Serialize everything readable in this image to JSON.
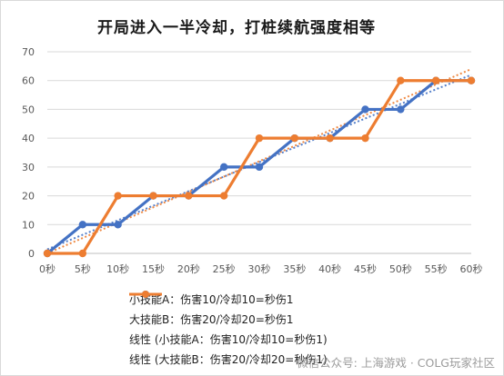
{
  "chart_data": {
    "type": "line",
    "title": "开局进入一半冷却，打桩续航强度相等",
    "xlabel": "",
    "ylabel": "",
    "categories": [
      "0秒",
      "5秒",
      "10秒",
      "15秒",
      "20秒",
      "25秒",
      "30秒",
      "35秒",
      "40秒",
      "45秒",
      "50秒",
      "55秒",
      "60秒"
    ],
    "x": [
      0,
      5,
      10,
      15,
      20,
      25,
      30,
      35,
      40,
      45,
      50,
      55,
      60
    ],
    "ylim": [
      0,
      70
    ],
    "yticks": [
      0,
      10,
      20,
      30,
      40,
      50,
      60,
      70
    ],
    "grid": true,
    "legend_position": "bottom",
    "series": [
      {
        "name": "小技能A：伤害10/冷却10=秒伤1",
        "color": "#4472C4",
        "style": "solid-marker",
        "x": [
          0,
          5,
          10,
          15,
          20,
          25,
          30,
          35,
          40,
          45,
          50,
          55,
          60
        ],
        "values": [
          0,
          10,
          10,
          20,
          20,
          30,
          30,
          40,
          40,
          50,
          50,
          60,
          60
        ]
      },
      {
        "name": "大技能B：伤害20/冷却20=秒伤1",
        "color": "#ED7D31",
        "style": "solid-marker",
        "x": [
          0,
          5,
          10,
          15,
          20,
          25,
          30,
          35,
          40,
          45,
          50,
          55,
          60
        ],
        "values": [
          0,
          0,
          20,
          20,
          20,
          20,
          40,
          40,
          40,
          40,
          60,
          60,
          60
        ]
      },
      {
        "name": "线性 (小技能A：伤害10/冷却10=秒伤1)",
        "color": "#4472C4",
        "style": "dotted",
        "x": [
          0,
          60
        ],
        "values": [
          1.4,
          62
        ]
      },
      {
        "name": "线性 (大技能B：伤害20/冷却20=秒伤1)",
        "color": "#ED7D31",
        "style": "dotted",
        "x": [
          0,
          60
        ],
        "values": [
          0,
          64
        ]
      }
    ]
  },
  "watermark": "微信公众号: 上海游戏 · COLG玩家社区"
}
